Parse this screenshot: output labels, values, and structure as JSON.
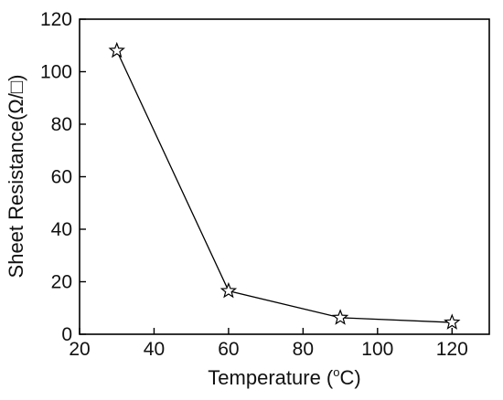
{
  "chart_data": {
    "type": "line",
    "xlabel": "Temperature (",
    "xlabel_unit_sup": "o",
    "xlabel_unit_end": "C)",
    "ylabel": "Sheet Resistance(Ω/□)",
    "xlim": [
      20,
      130
    ],
    "ylim": [
      0,
      120
    ],
    "xticks": [
      20,
      40,
      60,
      80,
      100,
      120
    ],
    "yticks": [
      0,
      20,
      40,
      60,
      80,
      100,
      120
    ],
    "grid": false,
    "series": [
      {
        "marker": "star",
        "x": [
          30,
          60,
          90,
          120
        ],
        "y": [
          108,
          16.5,
          6.3,
          4.5
        ]
      }
    ],
    "colors": {
      "line": "#000000",
      "axis": "#000000",
      "marker_fill": "#ffffff"
    }
  }
}
